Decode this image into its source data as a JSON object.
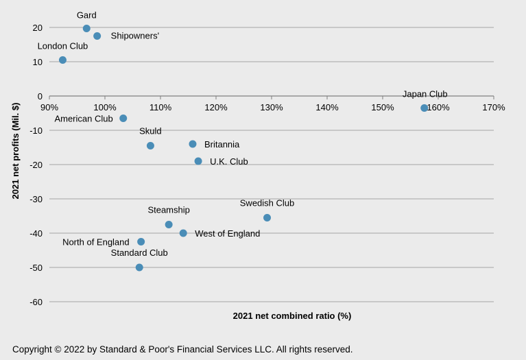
{
  "chart_data": {
    "type": "scatter",
    "xlabel": "2021 net combined ratio (%)",
    "ylabel": "2021 net profits (Mil. $)",
    "xlim": [
      90,
      170
    ],
    "ylim": [
      -60,
      20
    ],
    "x_ticks": [
      "90%",
      "100%",
      "110%",
      "120%",
      "130%",
      "140%",
      "150%",
      "160%",
      "170%"
    ],
    "y_ticks": [
      "20",
      "10",
      "0",
      "-10",
      "-20",
      "-30",
      "-40",
      "-50",
      "-60"
    ],
    "grid": true,
    "marker_color": "#4a8db7",
    "points": [
      {
        "label": "Gard",
        "x": 96.7,
        "y": 19.7
      },
      {
        "label": "Shipowners'",
        "x": 98.6,
        "y": 17.5
      },
      {
        "label": "London Club",
        "x": 92.4,
        "y": 10.5
      },
      {
        "label": "Japan Club",
        "x": 157.5,
        "y": -3.5
      },
      {
        "label": "American Club",
        "x": 103.3,
        "y": -6.5
      },
      {
        "label": "Skuld",
        "x": 108.2,
        "y": -14.5
      },
      {
        "label": "Britannia",
        "x": 115.8,
        "y": -14.0
      },
      {
        "label": "U.K. Club",
        "x": 116.8,
        "y": -19.0
      },
      {
        "label": "Swedish Club",
        "x": 129.2,
        "y": -35.5
      },
      {
        "label": "Steamship",
        "x": 111.5,
        "y": -37.5
      },
      {
        "label": "West of England",
        "x": 114.1,
        "y": -40.0
      },
      {
        "label": "North of England",
        "x": 106.5,
        "y": -42.5
      },
      {
        "label": "Standard Club",
        "x": 106.2,
        "y": -50.0
      }
    ]
  },
  "footer": {
    "copyright": "Copyright © 2022 by Standard & Poor's Financial Services LLC. All rights reserved."
  }
}
